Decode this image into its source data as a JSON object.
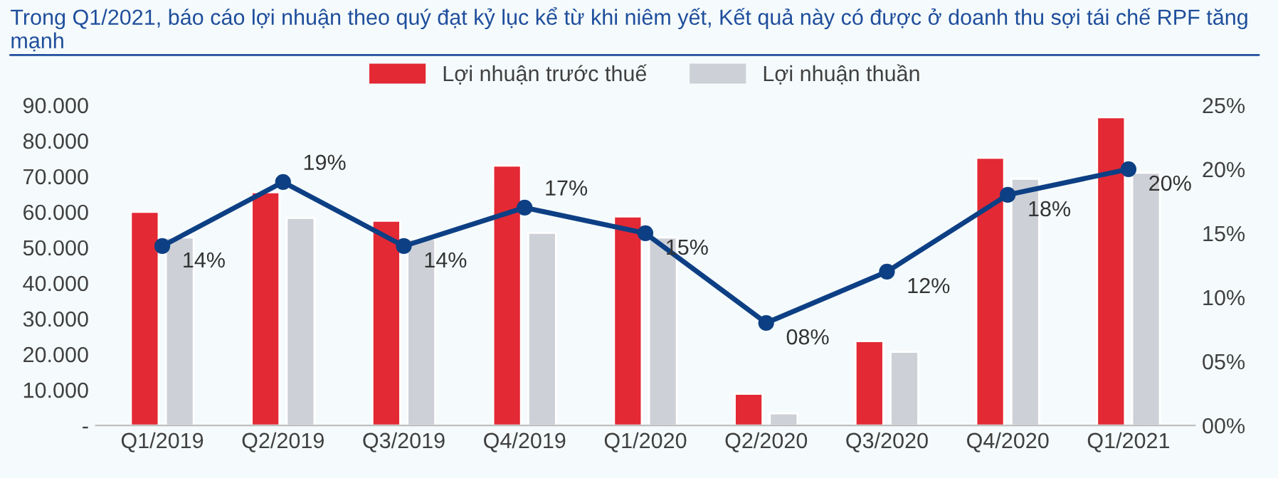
{
  "chart_data": {
    "type": "bar",
    "title": "Trong Q1/2021, báo cáo lợi nhuận theo quý đạt kỷ lục kể từ khi niêm yết, Kết quả này có được ở doanh thu sợi tái chế RPF tăng mạnh",
    "categories": [
      "Q1/2019",
      "Q2/2019",
      "Q3/2019",
      "Q4/2019",
      "Q1/2020",
      "Q2/2020",
      "Q3/2020",
      "Q4/2020",
      "Q1/2021"
    ],
    "series": [
      {
        "name": "Lợi nhuận trước thuế",
        "color": "#e32934",
        "values": [
          60000,
          65500,
          57500,
          73000,
          58700,
          8900,
          23700,
          75200,
          86600
        ]
      },
      {
        "name": "Lợi nhuận thuần",
        "color": "#cdd1d7",
        "values": [
          52800,
          58300,
          52400,
          54100,
          52800,
          3400,
          20700,
          69300,
          71000
        ]
      },
      {
        "type": "line",
        "axis": "y2",
        "color": "#0d3f84",
        "marker": "circle",
        "line_style": "solid",
        "values": [
          14,
          19,
          14,
          17,
          15,
          8,
          12,
          18,
          20
        ],
        "value_labels": [
          "14%",
          "19%",
          "14%",
          "17%",
          "15%",
          "08%",
          "12%",
          "18%",
          "20%"
        ]
      }
    ],
    "ylim": [
      0,
      90000
    ],
    "yticks": [
      {
        "value": 0,
        "label": "-"
      },
      {
        "value": 10000,
        "label": "10.000"
      },
      {
        "value": 20000,
        "label": "20.000"
      },
      {
        "value": 30000,
        "label": "30.000"
      },
      {
        "value": 40000,
        "label": "40.000"
      },
      {
        "value": 50000,
        "label": "50.000"
      },
      {
        "value": 60000,
        "label": "60.000"
      },
      {
        "value": 70000,
        "label": "70.000"
      },
      {
        "value": 80000,
        "label": "80.000"
      },
      {
        "value": 90000,
        "label": "90.000"
      }
    ],
    "y2lim": [
      0,
      25
    ],
    "y2ticks": [
      {
        "value": 0,
        "label": "00%"
      },
      {
        "value": 5,
        "label": "05%"
      },
      {
        "value": 10,
        "label": "10%"
      },
      {
        "value": 15,
        "label": "15%"
      },
      {
        "value": 20,
        "label": "20%"
      },
      {
        "value": 25,
        "label": "25%"
      }
    ],
    "legend": "top",
    "grid": false
  }
}
